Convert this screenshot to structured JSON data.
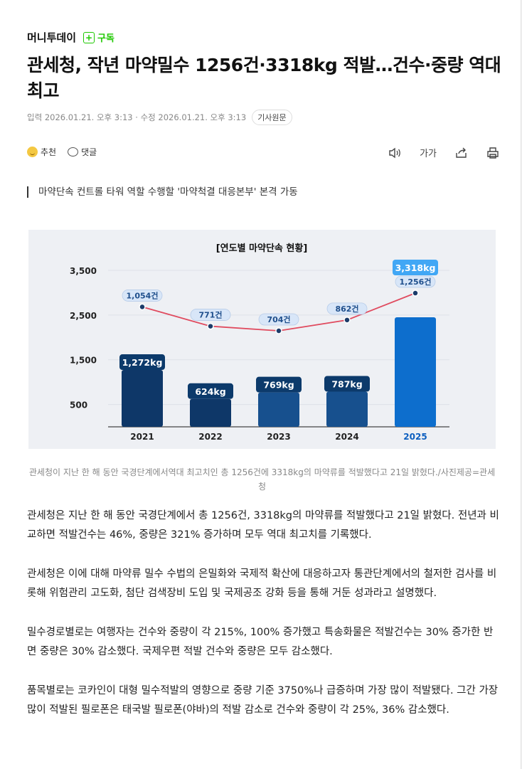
{
  "press": {
    "name": "머니투데이",
    "subscribe": "구독"
  },
  "article": {
    "headline": "관세청, 작년 마약밀수 1256건·3318kg 적발…건수·중량 역대 최고",
    "meta": "입력 2026.01.21. 오후 3:13 · 수정 2026.01.21. 오후 3:13",
    "original_button": "기사원문",
    "summary": "마약단속 컨트롤 타워 역할 수행할 '마약척결 대응본부' 본격 가동",
    "caption": "관세청이 지난 한 해 동안 국경단계에서역대 최고치인 총 1256건에 3318kg의 마약류를 적발했다고 21일 밝혔다./사진제공=관세청",
    "paragraphs": [
      "관세청은 지난 한 해 동안 국경단계에서 총 1256건, 3318kg의 마약류를 적발했다고 21일 밝혔다. 전년과 비교하면 적발건수는 46%, 중량은 321% 증가하며 모두 역대 최고치를 기록했다.",
      "관세청은 이에 대해 마약류 밀수 수법의 은밀화와 국제적 확산에 대응하고자 통관단계에서의 철저한 검사를 비롯해 위험관리 고도화, 첨단 검색장비 도입 및 국제공조 강화 등을 통해 거둔 성과라고 설명했다.",
      "밀수경로별로는 여행자는 건수와 중량이 각 215%, 100% 증가했고 특송화물은 적발건수는 30% 증가한 반면 중량은 30% 감소했다. 국제우편 적발 건수와 중량은 모두 감소했다.",
      "품목별로는 코카인이 대형 밀수적발의 영향으로 중량 기준 3750%나 급증하며 가장 많이 적발됐다. 그간 가장 많이 적발된 필로폰은 태국발 필로폰(야바)의 적발 감소로 건수와 중량이 각 25%, 36% 감소했다."
    ]
  },
  "actions": {
    "recommend": "추천",
    "comment": "댓글",
    "font_size": "가가"
  },
  "chart_data": {
    "type": "bar",
    "title": "[연도별 마약단속 현황]",
    "title_highlight": "마약단속",
    "categories": [
      "2021",
      "2022",
      "2023",
      "2024",
      "2025"
    ],
    "series": [
      {
        "values": [
          1272,
          624,
          769,
          787,
          3318
        ],
        "labels": [
          "1,272kg",
          "624kg",
          "769kg",
          "787kg",
          "3,318kg"
        ]
      },
      {
        "values": [
          1054,
          771,
          704,
          862,
          1256
        ],
        "labels": [
          "1,054건",
          "771건",
          "704건",
          "862건",
          "1,256건"
        ]
      }
    ],
    "ylim": [
      0,
      3500
    ],
    "yticks": [
      500,
      1500,
      2500,
      3500
    ],
    "ytick_labels": [
      "500",
      "1,500",
      "2,500",
      "3,500"
    ],
    "colors": {
      "bar": "#0e3768",
      "bar_mid": "#17508e",
      "bar_latest": "#0d6ecd",
      "line": "#e04b5f",
      "label_bg": "#0c3a6b",
      "count_label_bg": "#d8e6f8",
      "count_label_text": "#1f4f8c",
      "highlight_label_bg": "#41a7f5"
    }
  }
}
